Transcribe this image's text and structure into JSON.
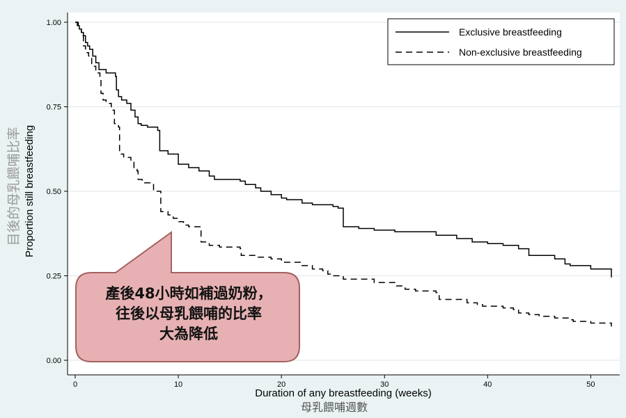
{
  "chart_data": {
    "type": "line",
    "xlabel": "Duration of any breastfeeding (weeks)",
    "xlabel_zh": "母乳餵哺週數",
    "ylabel": "Proportion still breastfeeding",
    "ylabel_zh": "目後的母乳餵哺比率",
    "xlim": [
      0,
      52
    ],
    "ylim": [
      0,
      1
    ],
    "x_ticks": [
      0,
      10,
      20,
      30,
      40,
      50
    ],
    "y_ticks": [
      "0.00",
      "0.25",
      "0.50",
      "0.75",
      "1.00"
    ],
    "grid": true,
    "legend_position": "top-right",
    "series": [
      {
        "name": "Exclusive breastfeeding",
        "style": "solid",
        "points": [
          [
            0,
            1.0
          ],
          [
            0.2,
            0.99
          ],
          [
            0.4,
            0.98
          ],
          [
            0.6,
            0.97
          ],
          [
            0.8,
            0.96
          ],
          [
            1.0,
            0.94
          ],
          [
            1.2,
            0.93
          ],
          [
            1.4,
            0.92
          ],
          [
            1.7,
            0.9
          ],
          [
            2.0,
            0.88
          ],
          [
            2.3,
            0.86
          ],
          [
            3.0,
            0.85
          ],
          [
            3.9,
            0.84
          ],
          [
            4.0,
            0.8
          ],
          [
            4.2,
            0.78
          ],
          [
            4.5,
            0.77
          ],
          [
            5.0,
            0.76
          ],
          [
            5.4,
            0.74
          ],
          [
            5.8,
            0.72
          ],
          [
            6.1,
            0.7
          ],
          [
            6.4,
            0.695
          ],
          [
            7.0,
            0.69
          ],
          [
            8.0,
            0.68
          ],
          [
            8.2,
            0.62
          ],
          [
            9.0,
            0.61
          ],
          [
            10.0,
            0.58
          ],
          [
            11.0,
            0.57
          ],
          [
            12.0,
            0.56
          ],
          [
            13.0,
            0.545
          ],
          [
            13.5,
            0.535
          ],
          [
            16.0,
            0.53
          ],
          [
            16.5,
            0.52
          ],
          [
            17.5,
            0.51
          ],
          [
            18.0,
            0.5
          ],
          [
            19.0,
            0.49
          ],
          [
            20.0,
            0.48
          ],
          [
            20.5,
            0.475
          ],
          [
            22.0,
            0.465
          ],
          [
            23.0,
            0.46
          ],
          [
            25.0,
            0.455
          ],
          [
            25.5,
            0.45
          ],
          [
            26.0,
            0.395
          ],
          [
            27.5,
            0.39
          ],
          [
            29.0,
            0.385
          ],
          [
            31.0,
            0.38
          ],
          [
            35.0,
            0.37
          ],
          [
            37.0,
            0.36
          ],
          [
            38.5,
            0.35
          ],
          [
            40.0,
            0.345
          ],
          [
            41.5,
            0.34
          ],
          [
            43.0,
            0.33
          ],
          [
            44.0,
            0.31
          ],
          [
            46.5,
            0.3
          ],
          [
            47.5,
            0.285
          ],
          [
            48.0,
            0.28
          ],
          [
            50.0,
            0.27
          ],
          [
            52.0,
            0.26
          ],
          [
            52.0,
            0.245
          ]
        ]
      },
      {
        "name": "Non-exclusive breastfeeding",
        "style": "dashed",
        "points": [
          [
            0,
            1.0
          ],
          [
            0.3,
            0.98
          ],
          [
            0.6,
            0.96
          ],
          [
            0.8,
            0.93
          ],
          [
            1.0,
            0.91
          ],
          [
            1.3,
            0.9
          ],
          [
            1.6,
            0.87
          ],
          [
            2.0,
            0.85
          ],
          [
            2.4,
            0.83
          ],
          [
            2.5,
            0.79
          ],
          [
            2.7,
            0.77
          ],
          [
            3.0,
            0.76
          ],
          [
            3.5,
            0.74
          ],
          [
            3.8,
            0.7
          ],
          [
            4.2,
            0.69
          ],
          [
            4.3,
            0.61
          ],
          [
            4.7,
            0.6
          ],
          [
            5.4,
            0.59
          ],
          [
            5.7,
            0.565
          ],
          [
            6.0,
            0.56
          ],
          [
            6.1,
            0.535
          ],
          [
            6.5,
            0.525
          ],
          [
            7.3,
            0.52
          ],
          [
            7.6,
            0.5
          ],
          [
            8.2,
            0.5
          ],
          [
            8.3,
            0.44
          ],
          [
            9.0,
            0.43
          ],
          [
            9.5,
            0.42
          ],
          [
            10.0,
            0.41
          ],
          [
            10.5,
            0.4
          ],
          [
            11.0,
            0.395
          ],
          [
            12.0,
            0.395
          ],
          [
            12.2,
            0.35
          ],
          [
            13.0,
            0.34
          ],
          [
            14.0,
            0.335
          ],
          [
            16.0,
            0.33
          ],
          [
            16.1,
            0.31
          ],
          [
            17.5,
            0.305
          ],
          [
            19.0,
            0.3
          ],
          [
            20.0,
            0.29
          ],
          [
            22.0,
            0.28
          ],
          [
            23.0,
            0.27
          ],
          [
            24.0,
            0.265
          ],
          [
            24.5,
            0.255
          ],
          [
            25.0,
            0.25
          ],
          [
            26.0,
            0.24
          ],
          [
            29.0,
            0.23
          ],
          [
            31.0,
            0.22
          ],
          [
            32.0,
            0.21
          ],
          [
            33.0,
            0.205
          ],
          [
            35.0,
            0.2
          ],
          [
            35.3,
            0.18
          ],
          [
            38.0,
            0.17
          ],
          [
            39.0,
            0.165
          ],
          [
            39.5,
            0.16
          ],
          [
            41.5,
            0.155
          ],
          [
            42.5,
            0.15
          ],
          [
            43.0,
            0.14
          ],
          [
            44.0,
            0.135
          ],
          [
            45.0,
            0.13
          ],
          [
            46.5,
            0.125
          ],
          [
            48.0,
            0.12
          ],
          [
            48.3,
            0.115
          ],
          [
            50.0,
            0.11
          ],
          [
            52.0,
            0.105
          ],
          [
            52.0,
            0.1
          ]
        ]
      }
    ],
    "annotation": {
      "lines": [
        "產後48小時如補過奶粉，",
        "往後以母乳餵哺的比率",
        "大為降低"
      ],
      "fill_color": "#e7b1b3",
      "border_color": "#a4615f"
    }
  }
}
